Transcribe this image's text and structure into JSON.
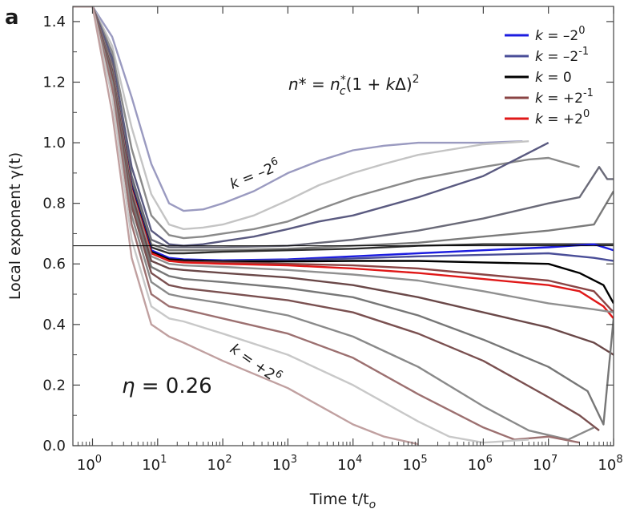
{
  "panel_label": "a",
  "chart_data": {
    "type": "line",
    "xlabel": "Time t/t",
    "xlabel_sub": "o",
    "ylabel": "Local exponent γ(t)",
    "x_scale": "log",
    "xlim": [
      0.5,
      100000000
    ],
    "ylim": [
      0.0,
      1.45
    ],
    "x_ticks": [
      {
        "value": 1,
        "base": "10",
        "exp": "0"
      },
      {
        "value": 10,
        "base": "10",
        "exp": "1"
      },
      {
        "value": 100,
        "base": "10",
        "exp": "2"
      },
      {
        "value": 1000,
        "base": "10",
        "exp": "3"
      },
      {
        "value": 10000,
        "base": "10",
        "exp": "4"
      },
      {
        "value": 100000,
        "base": "10",
        "exp": "5"
      },
      {
        "value": 1000000,
        "base": "10",
        "exp": "6"
      },
      {
        "value": 10000000,
        "base": "10",
        "exp": "7"
      },
      {
        "value": 100000000,
        "base": "10",
        "exp": "8"
      }
    ],
    "y_ticks": [
      {
        "value": 0.0,
        "label": "0.0"
      },
      {
        "value": 0.2,
        "label": "0.2"
      },
      {
        "value": 0.4,
        "label": "0.4"
      },
      {
        "value": 0.6,
        "label": "0.6"
      },
      {
        "value": 0.8,
        "label": "0.8"
      },
      {
        "value": 1.0,
        "label": "1.0"
      },
      {
        "value": 1.2,
        "label": "1.2"
      },
      {
        "value": 1.4,
        "label": "1.4"
      }
    ],
    "reference_line_y": 0.66,
    "legend": {
      "placement": "top-right",
      "entries": [
        {
          "k": "k",
          "eq": " = –2",
          "exp": "0",
          "color": "#1c1ce0"
        },
        {
          "k": "k",
          "eq": " = –2",
          "exp": "-1",
          "color": "#4a4e98"
        },
        {
          "k": "k",
          "eq": " = 0",
          "exp": "",
          "color": "#000000"
        },
        {
          "k": "k",
          "eq": " = +2",
          "exp": "-1",
          "color": "#8a4444"
        },
        {
          "k": "k",
          "eq": " = +2",
          "exp": "0",
          "color": "#e01818"
        }
      ]
    },
    "formula": {
      "n": "n*",
      "eq": " = ",
      "nc": "n",
      "nc_sup": "*",
      "nc_sub": "c",
      "rest": "(1 + ",
      "k": "k",
      "delta": "Δ)",
      "power": "2"
    },
    "annotations": {
      "top_k": {
        "k": "k",
        "eq": " = –2",
        "exp": "6"
      },
      "bottom_k": {
        "k": "k",
        "eq": " = +2",
        "exp": "6"
      },
      "eta": {
        "symbol": "η",
        "value": " = 0.26"
      }
    },
    "series": [
      {
        "color": "#9a9ac0",
        "x": [
          0.5,
          1,
          2,
          4,
          8,
          15,
          25,
          50,
          100,
          300,
          1000,
          3000,
          10000,
          30000,
          100000,
          1000000,
          4000000
        ],
        "y": [
          1.45,
          1.45,
          1.35,
          1.15,
          0.93,
          0.8,
          0.775,
          0.78,
          0.8,
          0.84,
          0.9,
          0.94,
          0.975,
          0.99,
          1.0,
          1.0,
          1.005
        ]
      },
      {
        "color": "#c4c4c4",
        "x": [
          0.5,
          1,
          2,
          4,
          8,
          15,
          25,
          50,
          100,
          300,
          1000,
          3000,
          10000,
          30000,
          100000,
          1000000,
          5000000
        ],
        "y": [
          1.45,
          1.45,
          1.32,
          1.05,
          0.83,
          0.73,
          0.715,
          0.72,
          0.73,
          0.76,
          0.81,
          0.86,
          0.9,
          0.93,
          0.96,
          0.995,
          1.005
        ]
      },
      {
        "color": "#8a8a8a",
        "x": [
          0.5,
          1,
          2,
          4,
          8,
          15,
          25,
          50,
          100,
          300,
          1000,
          3000,
          10000,
          100000,
          1000000,
          5000000,
          10000000,
          30000000
        ],
        "y": [
          1.45,
          1.45,
          1.3,
          0.98,
          0.76,
          0.695,
          0.685,
          0.69,
          0.7,
          0.715,
          0.74,
          0.78,
          0.82,
          0.88,
          0.92,
          0.945,
          0.95,
          0.92
        ]
      },
      {
        "color": "#5a5a80",
        "x": [
          0.5,
          1,
          2,
          4,
          8,
          15,
          25,
          50,
          100,
          300,
          1000,
          3000,
          10000,
          100000,
          1000000,
          10000000
        ],
        "y": [
          1.45,
          1.45,
          1.28,
          0.92,
          0.71,
          0.665,
          0.66,
          0.665,
          0.675,
          0.69,
          0.715,
          0.74,
          0.76,
          0.82,
          0.89,
          1.0
        ]
      },
      {
        "color": "#6a6a78",
        "x": [
          0.5,
          1,
          2,
          4,
          8,
          15,
          25,
          100,
          1000,
          10000,
          100000,
          1000000,
          10000000,
          30000000,
          60000000,
          80000000,
          100000000
        ],
        "y": [
          1.45,
          1.45,
          1.26,
          0.89,
          0.68,
          0.655,
          0.655,
          0.655,
          0.66,
          0.68,
          0.71,
          0.75,
          0.8,
          0.82,
          0.92,
          0.88,
          0.88
        ]
      },
      {
        "color": "#7a7a7a",
        "x": [
          0.5,
          1,
          2,
          4,
          8,
          15,
          25,
          100,
          1000,
          10000,
          100000,
          1000000,
          10000000,
          50000000,
          100000000
        ],
        "y": [
          1.45,
          1.45,
          1.25,
          0.87,
          0.665,
          0.645,
          0.645,
          0.645,
          0.65,
          0.66,
          0.67,
          0.69,
          0.71,
          0.73,
          0.84
        ]
      },
      {
        "color": "#303030",
        "x": [
          0.5,
          1,
          2,
          4,
          8,
          15,
          25,
          100,
          1000,
          10000,
          100000,
          1000000,
          10000000,
          100000000
        ],
        "y": [
          1.45,
          1.45,
          1.25,
          0.86,
          0.655,
          0.635,
          0.635,
          0.64,
          0.645,
          0.65,
          0.66,
          0.665,
          0.665,
          0.665
        ]
      },
      {
        "color": "#1c1ce0",
        "x": [
          0.5,
          1,
          2,
          4,
          8,
          15,
          25,
          100,
          1000,
          10000,
          100000,
          1000000,
          10000000,
          50000000,
          100000000
        ],
        "y": [
          1.45,
          1.45,
          1.25,
          0.855,
          0.645,
          0.62,
          0.615,
          0.612,
          0.615,
          0.625,
          0.635,
          0.645,
          0.655,
          0.665,
          0.645
        ]
      },
      {
        "color": "#4a4e98",
        "x": [
          0.5,
          1,
          2,
          4,
          8,
          15,
          25,
          100,
          1000,
          10000,
          100000,
          1000000,
          10000000,
          50000000,
          100000000
        ],
        "y": [
          1.45,
          1.45,
          1.25,
          0.85,
          0.64,
          0.615,
          0.612,
          0.61,
          0.612,
          0.618,
          0.625,
          0.63,
          0.635,
          0.62,
          0.61
        ]
      },
      {
        "color": "#000000",
        "x": [
          0.5,
          1,
          2,
          4,
          8,
          15,
          25,
          100,
          1000,
          10000,
          100000,
          1000000,
          10000000,
          30000000,
          70000000,
          100000000
        ],
        "y": [
          1.45,
          1.45,
          1.25,
          0.85,
          0.64,
          0.615,
          0.612,
          0.608,
          0.608,
          0.61,
          0.61,
          0.605,
          0.6,
          0.57,
          0.53,
          0.47
        ]
      },
      {
        "color": "#8a4444",
        "x": [
          0.5,
          1,
          2,
          4,
          8,
          15,
          25,
          100,
          1000,
          10000,
          100000,
          1000000,
          10000000,
          50000000,
          100000000
        ],
        "y": [
          1.45,
          1.45,
          1.25,
          0.845,
          0.635,
          0.61,
          0.607,
          0.605,
          0.6,
          0.595,
          0.585,
          0.565,
          0.545,
          0.51,
          0.44
        ]
      },
      {
        "color": "#e01818",
        "x": [
          0.5,
          1,
          2,
          4,
          8,
          15,
          25,
          100,
          1000,
          10000,
          100000,
          1000000,
          10000000,
          30000000,
          70000000,
          100000000
        ],
        "y": [
          1.45,
          1.45,
          1.25,
          0.845,
          0.635,
          0.61,
          0.605,
          0.6,
          0.595,
          0.585,
          0.57,
          0.55,
          0.53,
          0.51,
          0.46,
          0.42
        ]
      },
      {
        "color": "#909090",
        "x": [
          0.5,
          1,
          2,
          4,
          8,
          15,
          25,
          100,
          1000,
          10000,
          100000,
          1000000,
          10000000,
          50000000,
          100000000
        ],
        "y": [
          1.45,
          1.45,
          1.25,
          0.84,
          0.625,
          0.6,
          0.595,
          0.59,
          0.58,
          0.565,
          0.545,
          0.51,
          0.47,
          0.45,
          0.44
        ]
      },
      {
        "color": "#6a4848",
        "x": [
          0.5,
          1,
          2,
          4,
          8,
          15,
          25,
          100,
          1000,
          10000,
          100000,
          1000000,
          10000000,
          50000000,
          100000000
        ],
        "y": [
          1.45,
          1.45,
          1.24,
          0.83,
          0.61,
          0.585,
          0.58,
          0.57,
          0.555,
          0.53,
          0.49,
          0.44,
          0.39,
          0.34,
          0.3
        ]
      },
      {
        "color": "#777777",
        "x": [
          0.5,
          1,
          2,
          4,
          8,
          15,
          25,
          100,
          1000,
          10000,
          100000,
          1000000,
          10000000,
          40000000,
          70000000,
          100000000
        ],
        "y": [
          1.45,
          1.45,
          1.23,
          0.81,
          0.59,
          0.56,
          0.55,
          0.54,
          0.52,
          0.49,
          0.43,
          0.35,
          0.26,
          0.18,
          0.07,
          0.42
        ]
      },
      {
        "color": "#7a5050",
        "x": [
          0.5,
          1,
          2,
          4,
          8,
          15,
          25,
          100,
          1000,
          10000,
          100000,
          1000000,
          10000000,
          30000000,
          60000000
        ],
        "y": [
          1.45,
          1.45,
          1.22,
          0.79,
          0.57,
          0.53,
          0.52,
          0.505,
          0.48,
          0.44,
          0.37,
          0.28,
          0.16,
          0.1,
          0.05
        ]
      },
      {
        "color": "#8a8a8a",
        "x": [
          0.5,
          1,
          2,
          4,
          8,
          15,
          25,
          100,
          1000,
          10000,
          100000,
          1000000,
          5000000,
          20000000,
          50000000
        ],
        "y": [
          1.45,
          1.45,
          1.2,
          0.76,
          0.54,
          0.5,
          0.49,
          0.47,
          0.43,
          0.36,
          0.26,
          0.13,
          0.05,
          0.02,
          0.06
        ]
      },
      {
        "color": "#9c7070",
        "x": [
          0.5,
          1,
          2,
          4,
          8,
          15,
          25,
          100,
          1000,
          10000,
          100000,
          1000000,
          3000000,
          10000000,
          30000000
        ],
        "y": [
          1.45,
          1.45,
          1.18,
          0.73,
          0.5,
          0.46,
          0.45,
          0.42,
          0.37,
          0.29,
          0.17,
          0.06,
          0.02,
          0.03,
          0.01
        ]
      },
      {
        "color": "#c8c8c8",
        "x": [
          0.5,
          1,
          2,
          4,
          8,
          15,
          25,
          100,
          1000,
          10000,
          100000,
          300000,
          1000000,
          5000000
        ],
        "y": [
          1.45,
          1.45,
          1.15,
          0.68,
          0.46,
          0.42,
          0.41,
          0.37,
          0.3,
          0.2,
          0.08,
          0.03,
          0.01,
          0.02
        ]
      },
      {
        "color": "#c0a0a0",
        "x": [
          0.5,
          1,
          2,
          4,
          8,
          15,
          25,
          50,
          100,
          1000,
          10000,
          30000,
          100000
        ],
        "y": [
          1.45,
          1.45,
          1.1,
          0.62,
          0.4,
          0.36,
          0.34,
          0.31,
          0.28,
          0.19,
          0.07,
          0.03,
          0.005
        ]
      }
    ]
  }
}
